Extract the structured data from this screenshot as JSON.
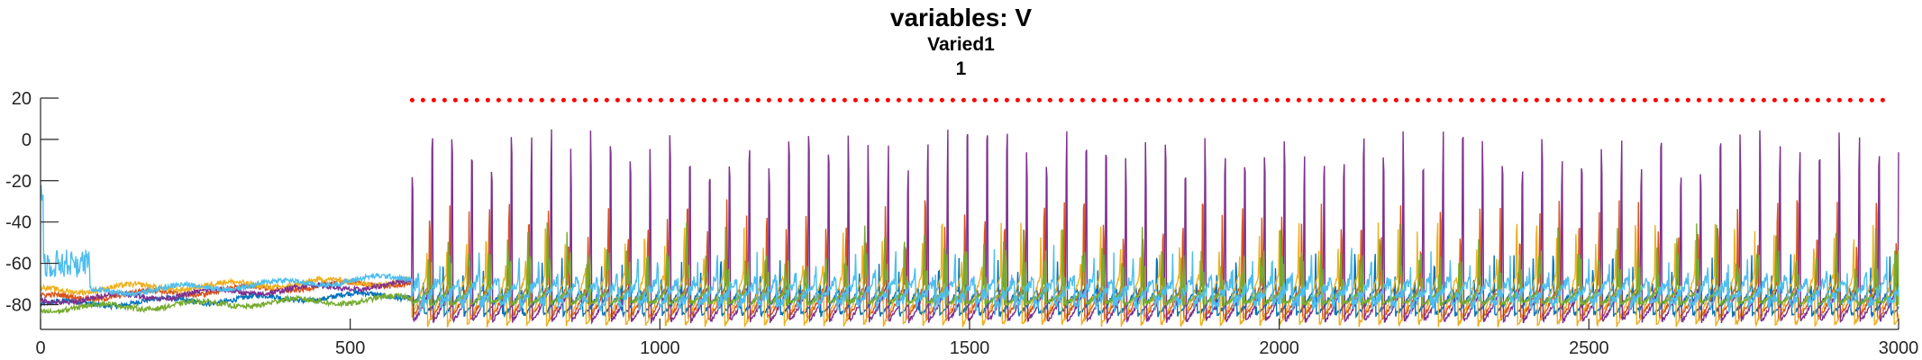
{
  "chart_data": {
    "type": "line",
    "title": "variables: V",
    "subtitle_lines": [
      "Varied1",
      "1"
    ],
    "xlabel": "",
    "ylabel": "",
    "xlim": [
      0,
      3000
    ],
    "ylim": [
      -92,
      20
    ],
    "xticks": [
      0,
      500,
      1000,
      1500,
      2000,
      2500,
      3000
    ],
    "xtick_labels": [
      "0",
      "500",
      "1000",
      "1500",
      "2000",
      "2500",
      "3000"
    ],
    "yticks": [
      20,
      0,
      -20,
      -40,
      -60,
      -80
    ],
    "ytick_labels": [
      "20",
      "0",
      "-20",
      "-40",
      "-60",
      "-80"
    ],
    "grid": false,
    "legend": "none",
    "threshold": {
      "y": 19,
      "x_start": 600,
      "x_end": 2985,
      "color": "#ff0000",
      "style": "dotted"
    },
    "series": [
      {
        "color": "#0072bd",
        "baseline": -80,
        "spike_start": 600,
        "period": 32,
        "phase": 14,
        "spike_peak": -70,
        "trough": -85
      },
      {
        "color": "#d95319",
        "baseline": -77,
        "spike_start": 600,
        "period": 32,
        "phase": 4,
        "spike_peak": -44,
        "trough": -87
      },
      {
        "color": "#edb120",
        "baseline": -73,
        "spike_start": 600,
        "period": 32,
        "phase": 9,
        "spike_peak": -55,
        "trough": -90
      },
      {
        "color": "#7e2f8e",
        "baseline": -78,
        "spike_start": 600,
        "period": 32,
        "phase": 0,
        "spike_peak": -10,
        "trough": -88
      },
      {
        "color": "#77ac30",
        "baseline": -82,
        "spike_start": 600,
        "period": 32,
        "phase": 6,
        "spike_peak": -55,
        "trough": -80
      },
      {
        "color": "#4dbeee",
        "baseline": -75,
        "spike_start": 600,
        "period": 32,
        "phase": 20,
        "spike_peak": -68,
        "trough": -80
      }
    ]
  }
}
